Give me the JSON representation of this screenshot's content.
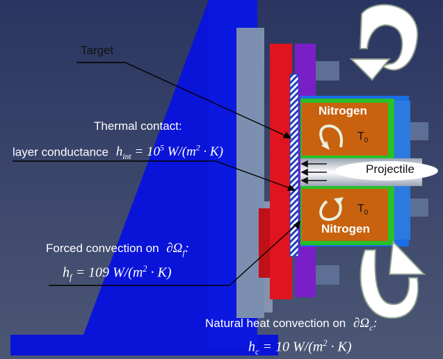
{
  "labels": {
    "target": "Target",
    "thermal_contact": "Thermal contact:",
    "layer_conductance": "layer conductance",
    "nitrogen_top": "Nitrogen",
    "nitrogen_bottom": "Nitrogen",
    "t0_top_base": "T",
    "t0_top_sub": "0",
    "t0_bottom_base": "T",
    "t0_bottom_sub": "0",
    "projectile": "Projectile",
    "forced_convection": "Forced convection on",
    "natural_convection": "Natural heat convection on"
  },
  "equations": {
    "h_int": {
      "sym": "h",
      "sub": "int",
      "mid": " = 10",
      "exp": "5",
      "unit": " W/(m",
      "unit_exp": "2",
      "tail": " · K)"
    },
    "h_f": {
      "sym": "h",
      "sub": "f",
      "mid": " = 109 W/(m",
      "exp": "2",
      "tail": " · K)"
    },
    "h_c": {
      "sym": "h",
      "sub": "c",
      "mid": " = 10 W/(m",
      "exp": "2",
      "tail": " · K)"
    },
    "omega_f": {
      "text": "∂Ω",
      "sub": "f",
      "colon": ":"
    },
    "omega_c": {
      "text": "∂Ω",
      "sub": "c",
      "colon": ":"
    }
  },
  "colors": {
    "background": "#2f3b63",
    "blue_frame": "#0a14d8",
    "grey_plate": "#7d8fb0",
    "red_flange": "#e0141e",
    "purple_flange": "#7a1fc8",
    "chamber_outer": "#1a6ee6",
    "green_layer": "#28c028",
    "nitrogen_fill": "#c8620e",
    "projectile_fill": "#ffffff",
    "arrow_fill": "#ffffff"
  },
  "icons": [
    "rotation-arrow-icon",
    "circulation-arrow-icon",
    "projectile-arrow-icon"
  ]
}
